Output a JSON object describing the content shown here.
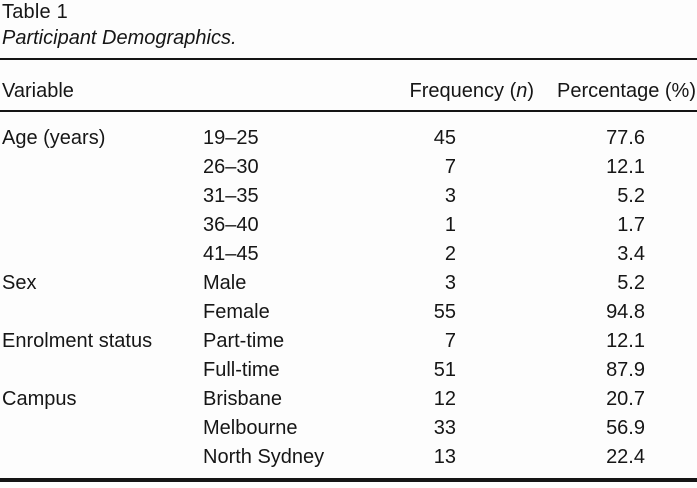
{
  "table": {
    "title": "Table 1",
    "caption": "Participant Demographics.",
    "header": {
      "variable": "Variable",
      "frequency_pre": "Frequency (",
      "frequency_symbol": "n",
      "frequency_post": ")",
      "percentage": "Percentage (%)"
    },
    "rows": [
      {
        "variable": "Age (years)",
        "category": "19–25",
        "frequency": "45",
        "percentage": "77.6"
      },
      {
        "variable": "",
        "category": "26–30",
        "frequency": "7",
        "percentage": "12.1"
      },
      {
        "variable": "",
        "category": "31–35",
        "frequency": "3",
        "percentage": "5.2"
      },
      {
        "variable": "",
        "category": "36–40",
        "frequency": "1",
        "percentage": "1.7"
      },
      {
        "variable": "",
        "category": "41–45",
        "frequency": "2",
        "percentage": "3.4"
      },
      {
        "variable": "Sex",
        "category": "Male",
        "frequency": "3",
        "percentage": "5.2"
      },
      {
        "variable": "",
        "category": "Female",
        "frequency": "55",
        "percentage": "94.8"
      },
      {
        "variable": "Enrolment status",
        "category": "Part-time",
        "frequency": "7",
        "percentage": "12.1"
      },
      {
        "variable": "",
        "category": "Full-time",
        "frequency": "51",
        "percentage": "87.9"
      },
      {
        "variable": "Campus",
        "category": "Brisbane",
        "frequency": "12",
        "percentage": "20.7"
      },
      {
        "variable": "",
        "category": "Melbourne",
        "frequency": "33",
        "percentage": "56.9"
      },
      {
        "variable": "",
        "category": "North Sydney",
        "frequency": "13",
        "percentage": "22.4"
      }
    ],
    "colors": {
      "background": "#fdfdfd",
      "text": "#161616",
      "rule": "#151515"
    }
  }
}
